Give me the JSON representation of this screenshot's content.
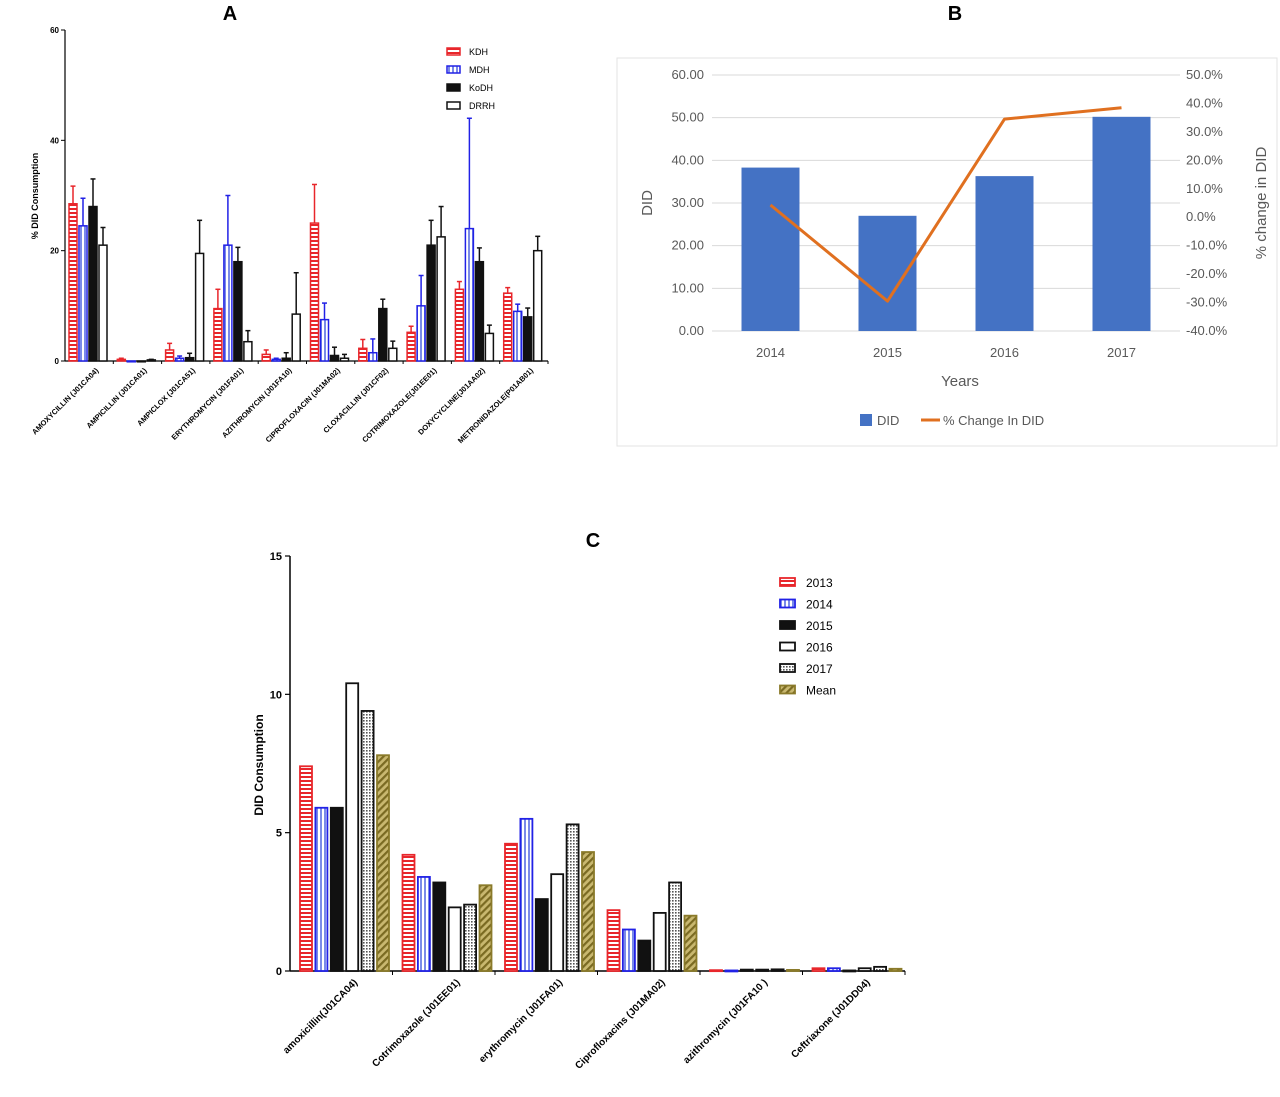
{
  "colors": {
    "kdh": "#e8262b",
    "mdh": "#2121e6",
    "black": "#111111",
    "mean": "#8a7a2a",
    "did_bar": "#4472c4",
    "did_line": "#e07020",
    "grid": "#d9d9d9",
    "axis_text_b": "#595959"
  },
  "chart_data": [
    {
      "panel": "A",
      "type": "bar",
      "ylabel": "% DID Consumption",
      "ylim": [
        0,
        60
      ],
      "yticks": [
        "0",
        "20",
        "40",
        "60"
      ],
      "legend_position": "top-right",
      "categories": [
        "AMOXYCILLIN (J01CA04)",
        "AMPICILLIN (J01CA01)",
        "AMPICLOX (J01CA51)",
        "ERYTHROMYCIN (J01FA01)",
        "AZITHROMYCIN (J01FA10)",
        "CIPROFLOXACIN (J01MA02)",
        "CLOXACILLIN (J01CF02)",
        "COTRIMOXAZOLE(J01EE01)",
        "DOXYCYCLINE(J01AA02)",
        "METRONIDAZOLE(P01AB01)"
      ],
      "series": [
        {
          "name": "KDH",
          "style": "hatch-red",
          "values": [
            28.5,
            0.3,
            2,
            9.5,
            1.2,
            25,
            2.3,
            5.2,
            13,
            12.3
          ],
          "errors": [
            3.2,
            0.2,
            1.2,
            3.5,
            0.8,
            7,
            1.6,
            1.1,
            1.4,
            1
          ]
        },
        {
          "name": "MDH",
          "style": "hatch-blue",
          "values": [
            24.5,
            0,
            0.5,
            21,
            0.3,
            7.5,
            1.5,
            10,
            24,
            9
          ],
          "errors": [
            5,
            0,
            0.4,
            9,
            0.2,
            3,
            2.5,
            5.5,
            20,
            1.3
          ]
        },
        {
          "name": "KoDH",
          "style": "solid-black",
          "values": [
            28,
            0,
            0.6,
            18,
            0.5,
            1,
            9.5,
            21,
            18,
            8
          ],
          "errors": [
            5,
            0,
            0.8,
            2.6,
            1,
            1.5,
            1.7,
            4.5,
            2.5,
            1.6
          ]
        },
        {
          "name": "DRRH",
          "style": "open-black",
          "values": [
            21,
            0.2,
            19.5,
            3.5,
            8.5,
            0.5,
            2.3,
            22.5,
            5,
            20
          ],
          "errors": [
            3.2,
            0.1,
            6,
            2,
            7.5,
            0.7,
            1.3,
            5.5,
            1.5,
            2.6
          ]
        }
      ]
    },
    {
      "panel": "B",
      "type": "bar+line",
      "xlabel": "Years",
      "ylabel": "DID",
      "y2label": "% change in DID",
      "categories": [
        "2014",
        "2015",
        "2016",
        "2017"
      ],
      "ylim": [
        0,
        60
      ],
      "yticks": [
        "0.00",
        "10.00",
        "20.00",
        "30.00",
        "40.00",
        "50.00",
        "60.00"
      ],
      "y2lim": [
        -40,
        50
      ],
      "y2ticks": [
        "-40.0%",
        "-30.0%",
        "-20.0%",
        "-10.0%",
        "0.0%",
        "10.0%",
        "20.0%",
        "30.0%",
        "40.0%",
        "50.0%"
      ],
      "grid": true,
      "legend_position": "bottom",
      "series": [
        {
          "name": "DID",
          "kind": "bar",
          "values": [
            38.3,
            27,
            36.3,
            50.2
          ]
        },
        {
          "name": "% Change In DID",
          "kind": "line",
          "axis": "right",
          "values": [
            4.3,
            -29.5,
            34.5,
            38.5
          ]
        }
      ]
    },
    {
      "panel": "C",
      "type": "bar",
      "ylabel": "DID Consumption",
      "ylim": [
        0,
        15
      ],
      "yticks": [
        "0",
        "5",
        "10",
        "15"
      ],
      "legend_position": "top-right",
      "categories": [
        "amoxicillin(J01CA04)",
        "Cotrimoxazole (J01EE01)",
        "erythromycin (J01FA01)",
        "Ciprofloxacins (J01MA02)",
        "azithromycin (J01FA10 )",
        "Ceftriaxone (J01DD04)"
      ],
      "series": [
        {
          "name": "2013",
          "style": "hatch-red",
          "values": [
            7.4,
            4.2,
            4.6,
            2.2,
            0.03,
            0.1
          ]
        },
        {
          "name": "2014",
          "style": "hatch-blue",
          "values": [
            5.9,
            3.4,
            5.5,
            1.5,
            0.02,
            0.1
          ]
        },
        {
          "name": "2015",
          "style": "solid-black",
          "values": [
            5.9,
            3.2,
            2.6,
            1.1,
            0.05,
            0.02
          ]
        },
        {
          "name": "2016",
          "style": "open-black",
          "values": [
            10.4,
            2.3,
            3.5,
            2.1,
            0.05,
            0.1
          ]
        },
        {
          "name": "2017",
          "style": "dotted-black",
          "values": [
            9.4,
            2.4,
            5.3,
            3.2,
            0.06,
            0.15
          ]
        },
        {
          "name": "Mean",
          "style": "hatch-olive",
          "values": [
            7.8,
            3.1,
            4.3,
            2.0,
            0.04,
            0.08
          ]
        }
      ]
    }
  ],
  "panel_labels": [
    "A",
    "B",
    "C"
  ]
}
